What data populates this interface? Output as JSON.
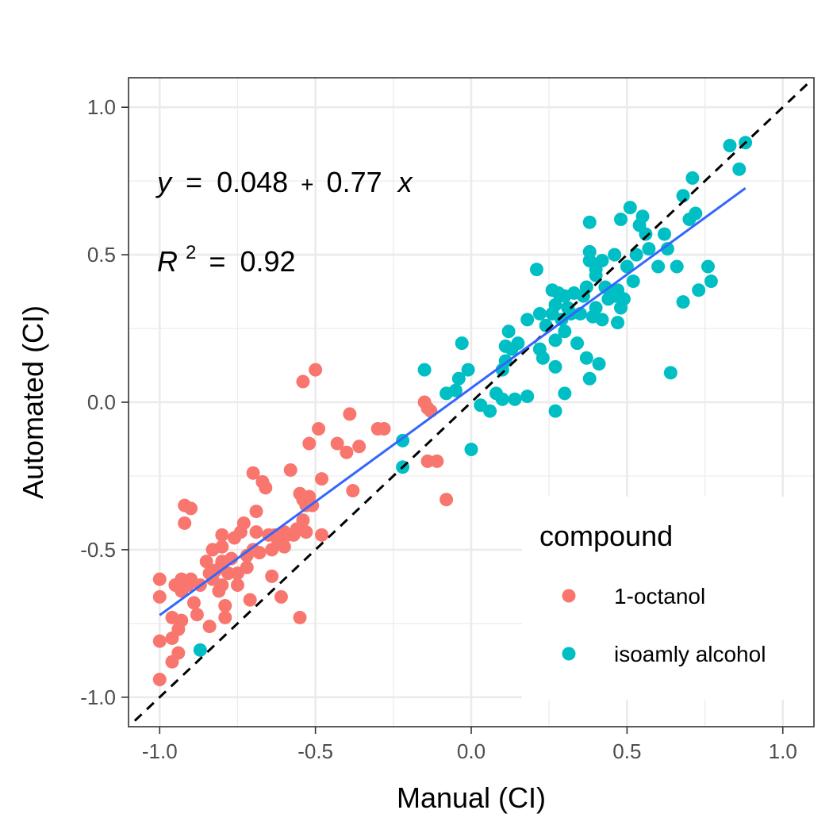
{
  "chart_data": {
    "type": "scatter",
    "xlabel": "Manual (CI)",
    "ylabel": "Automated (CI)",
    "xlim": [
      -1.1,
      1.1
    ],
    "ylim": [
      -1.1,
      1.1
    ],
    "x_ticks": [
      -1.0,
      -0.5,
      0.0,
      0.5,
      1.0
    ],
    "y_ticks": [
      -1.0,
      -0.5,
      0.0,
      0.5,
      1.0
    ],
    "x_tick_labels": [
      "-1.0",
      "-0.5",
      "0.0",
      "0.5",
      "1.0"
    ],
    "y_tick_labels": [
      "-1.0",
      "-0.5",
      "0.0",
      "0.5",
      "1.0"
    ],
    "grid": true,
    "legend": {
      "title": "compound",
      "placement": "bottom-right inside",
      "entries": [
        {
          "label": "1-octanol",
          "color": "#F8766D"
        },
        {
          "label": "isoamly alcohol",
          "color": "#00BFC4"
        }
      ]
    },
    "annotations": {
      "equation": {
        "y": "y",
        "eq": "=",
        "intercept": "0.048",
        "plus": "+",
        "slope": "0.77",
        "x": "x"
      },
      "r2": {
        "r": "R",
        "exp": "2",
        "eq": "=",
        "value": "0.92"
      }
    },
    "fit_line": {
      "intercept": 0.048,
      "slope": 0.77,
      "x_range": [
        -1.0,
        0.88
      ],
      "color": "#3366FF"
    },
    "identity_line": {
      "x_range": [
        -1.08,
        1.09
      ],
      "color": "#000000",
      "style": "dashed"
    },
    "series": [
      {
        "name": "1-octanol",
        "color": "#F8766D",
        "points": [
          [
            -1.0,
            -0.6
          ],
          [
            -1.0,
            -0.66
          ],
          [
            -1.0,
            -0.81
          ],
          [
            -1.0,
            -0.94
          ],
          [
            -0.96,
            -0.88
          ],
          [
            -0.96,
            -0.8
          ],
          [
            -0.96,
            -0.73
          ],
          [
            -0.95,
            -0.62
          ],
          [
            -0.94,
            -0.85
          ],
          [
            -0.94,
            -0.77
          ],
          [
            -0.93,
            -0.74
          ],
          [
            -0.93,
            -0.6
          ],
          [
            -0.93,
            -0.64
          ],
          [
            -0.92,
            -0.41
          ],
          [
            -0.92,
            -0.35
          ],
          [
            -0.91,
            -0.62
          ],
          [
            -0.9,
            -0.36
          ],
          [
            -0.9,
            -0.6
          ],
          [
            -0.89,
            -0.68
          ],
          [
            -0.88,
            -0.72
          ],
          [
            -0.87,
            -0.62
          ],
          [
            -0.85,
            -0.54
          ],
          [
            -0.84,
            -0.58
          ],
          [
            -0.84,
            -0.76
          ],
          [
            -0.83,
            -0.5
          ],
          [
            -0.83,
            -0.6
          ],
          [
            -0.82,
            -0.57
          ],
          [
            -0.81,
            -0.64
          ],
          [
            -0.8,
            -0.45
          ],
          [
            -0.8,
            -0.49
          ],
          [
            -0.8,
            -0.54
          ],
          [
            -0.8,
            -0.62
          ],
          [
            -0.79,
            -0.69
          ],
          [
            -0.79,
            -0.73
          ],
          [
            -0.78,
            -0.58
          ],
          [
            -0.77,
            -0.53
          ],
          [
            -0.76,
            -0.46
          ],
          [
            -0.75,
            -0.58
          ],
          [
            -0.75,
            -0.62
          ],
          [
            -0.74,
            -0.44
          ],
          [
            -0.73,
            -0.41
          ],
          [
            -0.72,
            -0.52
          ],
          [
            -0.72,
            -0.56
          ],
          [
            -0.71,
            -0.67
          ],
          [
            -0.7,
            -0.24
          ],
          [
            -0.7,
            -0.5
          ],
          [
            -0.69,
            -0.44
          ],
          [
            -0.69,
            -0.37
          ],
          [
            -0.68,
            -0.51
          ],
          [
            -0.67,
            -0.27
          ],
          [
            -0.66,
            -0.29
          ],
          [
            -0.65,
            -0.45
          ],
          [
            -0.64,
            -0.59
          ],
          [
            -0.64,
            -0.5
          ],
          [
            -0.63,
            -0.45
          ],
          [
            -0.62,
            -0.47
          ],
          [
            -0.61,
            -0.66
          ],
          [
            -0.6,
            -0.44
          ],
          [
            -0.6,
            -0.49
          ],
          [
            -0.59,
            -0.45
          ],
          [
            -0.58,
            -0.23
          ],
          [
            -0.57,
            -0.45
          ],
          [
            -0.56,
            -0.43
          ],
          [
            -0.55,
            -0.31
          ],
          [
            -0.55,
            -0.73
          ],
          [
            -0.54,
            0.07
          ],
          [
            -0.54,
            -0.4
          ],
          [
            -0.54,
            -0.33
          ],
          [
            -0.53,
            -0.35
          ],
          [
            -0.53,
            -0.44
          ],
          [
            -0.52,
            -0.14
          ],
          [
            -0.52,
            -0.32
          ],
          [
            -0.51,
            -0.35
          ],
          [
            -0.5,
            0.11
          ],
          [
            -0.49,
            -0.09
          ],
          [
            -0.48,
            -0.26
          ],
          [
            -0.48,
            -0.45
          ],
          [
            -0.43,
            -0.14
          ],
          [
            -0.4,
            -0.17
          ],
          [
            -0.39,
            -0.04
          ],
          [
            -0.38,
            -0.3
          ],
          [
            -0.36,
            -0.15
          ],
          [
            -0.3,
            -0.09
          ],
          [
            -0.28,
            -0.09
          ],
          [
            -0.15,
            0.0
          ],
          [
            -0.14,
            -0.2
          ],
          [
            -0.14,
            -0.02
          ],
          [
            -0.13,
            -0.03
          ],
          [
            -0.11,
            -0.2
          ],
          [
            -0.08,
            -0.33
          ]
        ]
      },
      {
        "name": "isoamly alcohol",
        "color": "#00BFC4",
        "points": [
          [
            -0.87,
            -0.84
          ],
          [
            -0.22,
            -0.13
          ],
          [
            -0.22,
            -0.22
          ],
          [
            -0.15,
            0.11
          ],
          [
            -0.08,
            0.03
          ],
          [
            -0.05,
            0.04
          ],
          [
            -0.04,
            0.08
          ],
          [
            -0.03,
            0.2
          ],
          [
            -0.01,
            0.11
          ],
          [
            0.0,
            -0.16
          ],
          [
            0.03,
            -0.01
          ],
          [
            0.06,
            -0.03
          ],
          [
            0.08,
            0.03
          ],
          [
            0.1,
            0.01
          ],
          [
            0.1,
            0.11
          ],
          [
            0.11,
            0.14
          ],
          [
            0.11,
            0.19
          ],
          [
            0.12,
            0.24
          ],
          [
            0.13,
            0.18
          ],
          [
            0.14,
            0.01
          ],
          [
            0.15,
            0.2
          ],
          [
            0.18,
            0.02
          ],
          [
            0.18,
            0.28
          ],
          [
            0.21,
            0.45
          ],
          [
            0.22,
            0.3
          ],
          [
            0.22,
            0.18
          ],
          [
            0.23,
            0.15
          ],
          [
            0.24,
            0.26
          ],
          [
            0.26,
            0.38
          ],
          [
            0.26,
            0.3
          ],
          [
            0.27,
            -0.03
          ],
          [
            0.27,
            0.33
          ],
          [
            0.27,
            0.21
          ],
          [
            0.27,
            0.12
          ],
          [
            0.28,
            0.37
          ],
          [
            0.29,
            0.28
          ],
          [
            0.3,
            0.24
          ],
          [
            0.3,
            0.36
          ],
          [
            0.3,
            0.03
          ],
          [
            0.31,
            0.32
          ],
          [
            0.32,
            0.3
          ],
          [
            0.33,
            0.37
          ],
          [
            0.34,
            0.2
          ],
          [
            0.35,
            0.3
          ],
          [
            0.36,
            0.36
          ],
          [
            0.37,
            0.39
          ],
          [
            0.37,
            0.15
          ],
          [
            0.38,
            0.08
          ],
          [
            0.38,
            0.48
          ],
          [
            0.38,
            0.51
          ],
          [
            0.38,
            0.61
          ],
          [
            0.39,
            0.29
          ],
          [
            0.4,
            0.45
          ],
          [
            0.4,
            0.32
          ],
          [
            0.4,
            0.43
          ],
          [
            0.41,
            0.13
          ],
          [
            0.42,
            0.28
          ],
          [
            0.42,
            0.48
          ],
          [
            0.43,
            0.39
          ],
          [
            0.44,
            0.35
          ],
          [
            0.45,
            0.37
          ],
          [
            0.46,
            0.36
          ],
          [
            0.46,
            0.5
          ],
          [
            0.47,
            0.27
          ],
          [
            0.47,
            0.38
          ],
          [
            0.48,
            0.32
          ],
          [
            0.48,
            0.62
          ],
          [
            0.49,
            0.35
          ],
          [
            0.5,
            0.46
          ],
          [
            0.51,
            0.66
          ],
          [
            0.52,
            0.41
          ],
          [
            0.53,
            0.5
          ],
          [
            0.54,
            0.6
          ],
          [
            0.55,
            0.63
          ],
          [
            0.56,
            0.57
          ],
          [
            0.57,
            0.52
          ],
          [
            0.6,
            0.46
          ],
          [
            0.62,
            0.57
          ],
          [
            0.63,
            0.52
          ],
          [
            0.64,
            0.1
          ],
          [
            0.66,
            0.46
          ],
          [
            0.68,
            0.34
          ],
          [
            0.68,
            0.7
          ],
          [
            0.7,
            0.62
          ],
          [
            0.71,
            0.76
          ],
          [
            0.72,
            0.64
          ],
          [
            0.73,
            0.38
          ],
          [
            0.76,
            0.46
          ],
          [
            0.77,
            0.41
          ],
          [
            0.83,
            0.87
          ],
          [
            0.86,
            0.79
          ],
          [
            0.88,
            0.88
          ]
        ]
      }
    ]
  }
}
